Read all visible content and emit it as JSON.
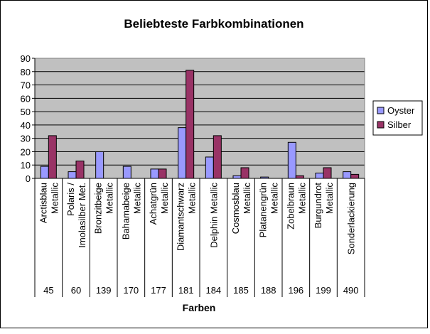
{
  "chart_data": {
    "type": "bar",
    "title": "Beliebteste Farbkombinationen",
    "xlabel": "Farben",
    "ylabel": "",
    "ylim": [
      0,
      90
    ],
    "yticks": [
      0,
      10,
      20,
      30,
      40,
      50,
      60,
      70,
      80,
      90
    ],
    "grid": true,
    "legend_position": "right",
    "categories": [
      {
        "name": [
          "Arctisblau",
          "Metallic"
        ],
        "code": "45"
      },
      {
        "name": [
          "Polaris /",
          "Imolasilber Met."
        ],
        "code": "60"
      },
      {
        "name": [
          "Bronzitbeige",
          "Metallic"
        ],
        "code": "139"
      },
      {
        "name": [
          "Bahamabeige",
          "Metallic"
        ],
        "code": "170"
      },
      {
        "name": [
          "Achatgrün",
          "Metallic"
        ],
        "code": "177"
      },
      {
        "name": [
          "Diamantschwarz",
          "Metallic"
        ],
        "code": "181"
      },
      {
        "name": [
          "Delphin Metallic"
        ],
        "code": "184"
      },
      {
        "name": [
          "Cosmosblau",
          "Metallic"
        ],
        "code": "185"
      },
      {
        "name": [
          "Platanengrün",
          "Metallic"
        ],
        "code": "188"
      },
      {
        "name": [
          "Zobelbraun",
          "Metallic"
        ],
        "code": "196"
      },
      {
        "name": [
          "Burgundrot",
          "Metallic"
        ],
        "code": "199"
      },
      {
        "name": [
          "Sonderlackierung"
        ],
        "code": "490"
      }
    ],
    "series": [
      {
        "name": "Oyster",
        "color": "#9999ff",
        "values": [
          9,
          5,
          20,
          9,
          7,
          38,
          16,
          2,
          1,
          27,
          4,
          5
        ]
      },
      {
        "name": "Silber",
        "color": "#993366",
        "values": [
          32,
          13,
          0,
          0,
          7,
          81,
          32,
          8,
          0,
          2,
          8,
          3
        ]
      }
    ],
    "colors": {
      "plot_background": "#c0c0c0",
      "gridline": "#000000"
    }
  }
}
